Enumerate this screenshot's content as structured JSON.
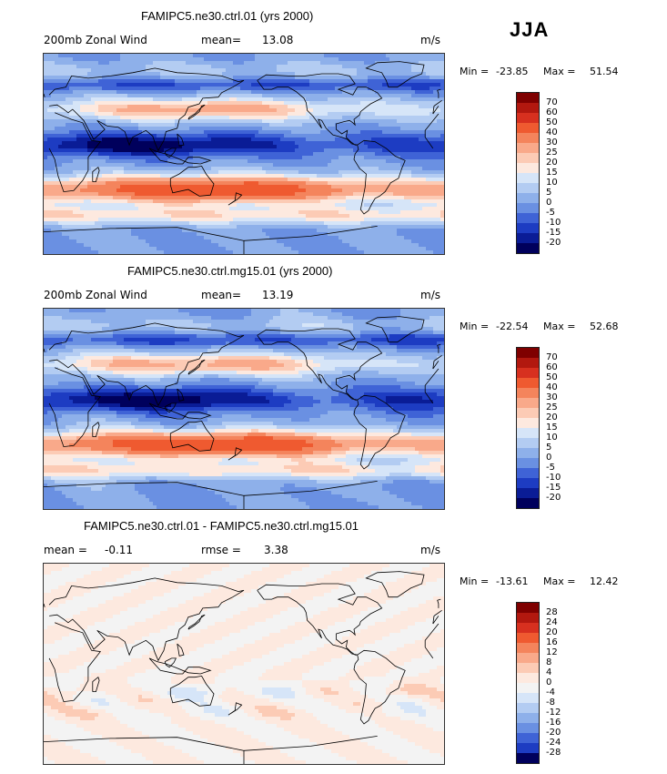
{
  "season": "JJA",
  "panels": [
    {
      "title": "FAMIPC5.ne30.ctrl.01 (yrs 2000)",
      "left_label": "200mb Zonal Wind",
      "mid_label": "mean=",
      "mid_value": "13.08",
      "units": "m/s",
      "min_label": "Min =",
      "min_value": "-23.85",
      "max_label": "Max =",
      "max_value": "51.54",
      "levels": [
        "70",
        "60",
        "50",
        "40",
        "30",
        "25",
        "20",
        "15",
        "10",
        "5",
        "0",
        "-5",
        "-10",
        "-15",
        "-20"
      ],
      "colors": [
        "#7f0000",
        "#b2180f",
        "#d7301f",
        "#ef5a30",
        "#f4845c",
        "#f9a98a",
        "#fccbb5",
        "#fde9df",
        "#d6e5f8",
        "#b3ccf2",
        "#8eb0ea",
        "#6a90e2",
        "#3f63d6",
        "#1d3cc2",
        "#0a1c96",
        "#00005c"
      ],
      "field": "wind"
    },
    {
      "title": "FAMIPC5.ne30.ctrl.mg15.01 (yrs 2000)",
      "left_label": "200mb Zonal Wind",
      "mid_label": "mean=",
      "mid_value": "13.19",
      "units": "m/s",
      "min_label": "Min =",
      "min_value": "-22.54",
      "max_label": "Max =",
      "max_value": "52.68",
      "levels": [
        "70",
        "60",
        "50",
        "40",
        "30",
        "25",
        "20",
        "15",
        "10",
        "5",
        "0",
        "-5",
        "-10",
        "-15",
        "-20"
      ],
      "colors": [
        "#7f0000",
        "#b2180f",
        "#d7301f",
        "#ef5a30",
        "#f4845c",
        "#f9a98a",
        "#fccbb5",
        "#fde9df",
        "#d6e5f8",
        "#b3ccf2",
        "#8eb0ea",
        "#6a90e2",
        "#3f63d6",
        "#1d3cc2",
        "#0a1c96",
        "#00005c"
      ],
      "field": "wind"
    },
    {
      "title": "FAMIPC5.ne30.ctrl.01 - FAMIPC5.ne30.ctrl.mg15.01",
      "left_label": "mean =",
      "left_value": "-0.11",
      "mid_label": "rmse =",
      "mid_value": "3.38",
      "units": "m/s",
      "min_label": "Min =",
      "min_value": "-13.61",
      "max_label": "Max =",
      "max_value": "12.42",
      "levels": [
        "28",
        "24",
        "20",
        "16",
        "12",
        "8",
        "4",
        "0",
        "-4",
        "-8",
        "-12",
        "-16",
        "-20",
        "-24",
        "-28"
      ],
      "colors": [
        "#7f0000",
        "#b2180f",
        "#d7301f",
        "#ef5a30",
        "#f4845c",
        "#f9a98a",
        "#fccbb5",
        "#fde9df",
        "#f3f3f3",
        "#d6e5f8",
        "#b3ccf2",
        "#8eb0ea",
        "#6a90e2",
        "#3f63d6",
        "#1d3cc2",
        "#00005c"
      ],
      "field": "diff"
    }
  ]
}
